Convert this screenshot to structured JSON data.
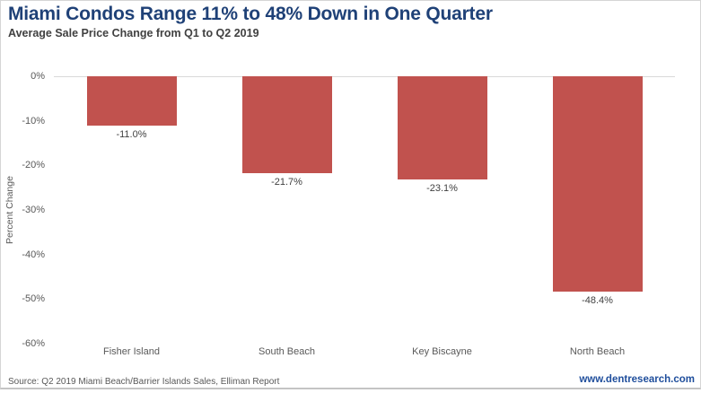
{
  "header": {
    "title": "Miami Condos Range 11% to 48% Down in One Quarter",
    "subtitle": "Average Sale Price Change from Q1 to Q2 2019"
  },
  "chart_data": {
    "type": "bar",
    "categories": [
      "Fisher Island",
      "South Beach",
      "Key Biscayne",
      "North Beach"
    ],
    "values": [
      -11.0,
      -21.7,
      -23.1,
      -48.4
    ],
    "data_labels": [
      "-11.0%",
      "-21.7%",
      "-23.1%",
      "-48.4%"
    ],
    "title": "Miami Condos Range 11% to 48% Down in One Quarter",
    "subtitle": "Average Sale Price Change from Q1 to Q2 2019",
    "xlabel": "",
    "ylabel": "Percent Change",
    "ylim": [
      -60,
      0
    ],
    "ytick_step": -10,
    "ytick_labels": [
      "0%",
      "-10%",
      "-20%",
      "-30%",
      "-40%",
      "-50%",
      "-60%"
    ],
    "grid": false,
    "legend": false,
    "bar_color": "#c1524e"
  },
  "footer": {
    "source": "Source: Q2 2019 Miami Beach/Barrier Islands Sales, Elliman Report",
    "website": "www.dentresearch.com"
  },
  "colors": {
    "title_navy": "#1f4177",
    "subtitle_gray": "#404040",
    "axis_text_gray": "#595959",
    "data_label_gray": "#3f3f3f",
    "bar_red": "#c1524e",
    "zero_line_gray": "#d9d9d9",
    "website_blue": "#1f4e9c",
    "border_gray": "#d5d5d5"
  }
}
